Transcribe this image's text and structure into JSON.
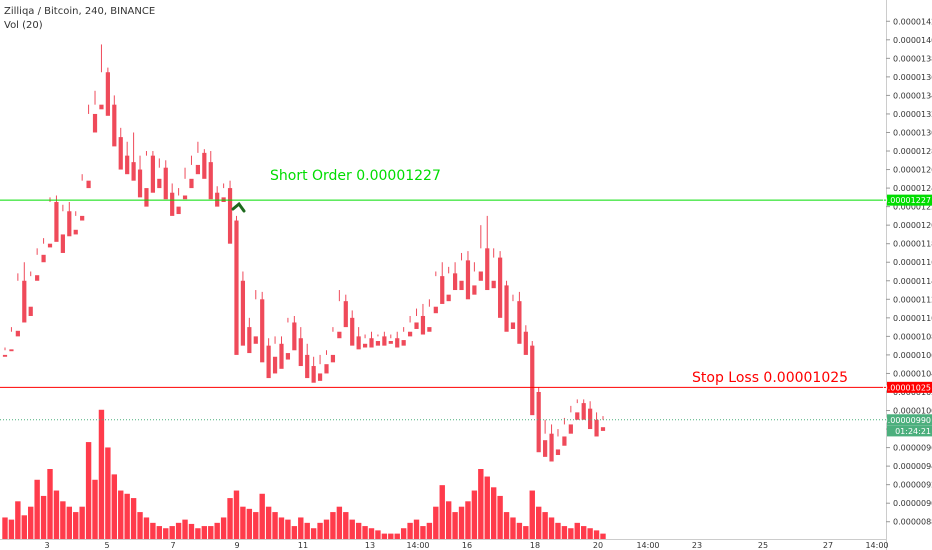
{
  "header": {
    "title": "Zilliqa / Bitcoin, 240, BINANCE",
    "volume": "Vol (20)"
  },
  "annotations": {
    "short": {
      "text": "Short Order 0.00001227",
      "color": "#00dd00"
    },
    "stop": {
      "text": "Stop Loss 0.00001025",
      "color": "#ff0000"
    }
  },
  "colors": {
    "up": "#4caf7d",
    "down": "#ef4a5a",
    "vol_up": "#3a7a24",
    "vol_down": "#ff3b4b",
    "short": "#00dd00",
    "stop": "#ff0000",
    "current": "#4caf7d"
  },
  "chart_data": {
    "type": "candlestick",
    "title": "Zilliqa / Bitcoin, 240, BINANCE",
    "ylim": [
      8.7e-06,
      1.43e-05
    ],
    "yticks": [
      "0.00001420",
      "0.00001400",
      "0.00001380",
      "0.00001360",
      "0.00001340",
      "0.00001320",
      "0.00001300",
      "0.00001280",
      "0.00001260",
      "0.00001240",
      "0.00001220",
      "0.00001200",
      "0.00001180",
      "0.00001160",
      "0.00001140",
      "0.00001120",
      "0.00001100",
      "0.00001080",
      "0.00001060",
      "0.00001040",
      "0.00001020",
      "0.00001000",
      "0.00000980",
      "0.00000960",
      "0.00000940",
      "0.00000920",
      "0.00000900",
      "0.00000880"
    ],
    "xticks": [
      "3",
      "5",
      "7",
      "9",
      "11",
      "13",
      "14:00",
      "16",
      "18",
      "20",
      "14:00",
      "23",
      "25",
      "27",
      "14:00"
    ],
    "price_tags": [
      {
        "label": "0.00001227",
        "value": 1.227e-05,
        "color": "#00dd00"
      },
      {
        "label": "0.00001025",
        "value": 1.025e-05,
        "color": "#ff0000"
      },
      {
        "label": "0.00000990",
        "value": 9.9e-06,
        "color": "#4caf7d"
      },
      {
        "label": "01:24:21",
        "value": 9.78e-06,
        "color": "#4caf7d"
      }
    ],
    "levels": [
      {
        "name": "short-order",
        "value": 1.227e-05
      },
      {
        "name": "stop-loss",
        "value": 1.025e-05
      },
      {
        "name": "current",
        "value": 9.9e-06
      }
    ],
    "candles": [
      [
        1.06,
        1.068,
        1.065,
        1.058,
        20
      ],
      [
        1.066,
        1.09,
        1.085,
        1.064,
        18
      ],
      [
        1.086,
        1.148,
        1.14,
        1.08,
        35
      ],
      [
        1.14,
        1.16,
        1.11,
        1.095,
        22
      ],
      [
        1.112,
        1.15,
        1.145,
        1.102,
        30
      ],
      [
        1.146,
        1.175,
        1.168,
        1.14,
        55
      ],
      [
        1.168,
        1.186,
        1.18,
        1.16,
        40
      ],
      [
        1.18,
        1.23,
        1.225,
        1.176,
        65
      ],
      [
        1.225,
        1.232,
        1.19,
        1.182,
        45
      ],
      [
        1.19,
        1.222,
        1.215,
        1.17,
        35
      ],
      [
        1.215,
        1.225,
        1.195,
        1.188,
        30
      ],
      [
        1.195,
        1.215,
        1.21,
        1.19,
        25
      ],
      [
        1.21,
        1.255,
        1.248,
        1.205,
        30
      ],
      [
        1.248,
        1.33,
        1.32,
        1.24,
        90
      ],
      [
        1.32,
        1.345,
        1.33,
        1.3,
        55
      ],
      [
        1.33,
        1.395,
        1.365,
        1.325,
        120
      ],
      [
        1.365,
        1.37,
        1.33,
        1.318,
        85
      ],
      [
        1.33,
        1.34,
        1.295,
        1.285,
        60
      ],
      [
        1.295,
        1.305,
        1.275,
        1.26,
        45
      ],
      [
        1.275,
        1.29,
        1.268,
        1.255,
        42
      ],
      [
        1.268,
        1.3,
        1.26,
        1.248,
        38
      ],
      [
        1.26,
        1.275,
        1.24,
        1.23,
        25
      ],
      [
        1.24,
        1.28,
        1.275,
        1.22,
        20
      ],
      [
        1.275,
        1.28,
        1.25,
        1.235,
        15
      ],
      [
        1.25,
        1.272,
        1.262,
        1.24,
        12
      ],
      [
        1.262,
        1.27,
        1.235,
        1.228,
        10
      ],
      [
        1.235,
        1.245,
        1.22,
        1.21,
        12
      ],
      [
        1.22,
        1.24,
        1.232,
        1.212,
        15
      ],
      [
        1.232,
        1.262,
        1.25,
        1.228,
        18
      ],
      [
        1.25,
        1.275,
        1.265,
        1.24,
        14
      ],
      [
        1.265,
        1.29,
        1.278,
        1.255,
        10
      ],
      [
        1.278,
        1.282,
        1.268,
        1.25,
        12
      ],
      [
        1.268,
        1.28,
        1.235,
        1.228,
        12
      ],
      [
        1.235,
        1.242,
        1.23,
        1.22,
        15
      ],
      [
        1.23,
        1.245,
        1.24,
        1.225,
        20
      ],
      [
        1.24,
        1.248,
        1.205,
        1.18,
        38
      ],
      [
        1.205,
        1.21,
        1.14,
        1.06,
        45
      ],
      [
        1.14,
        1.15,
        1.09,
        1.07,
        30
      ],
      [
        1.09,
        1.1,
        1.08,
        1.062,
        28
      ],
      [
        1.08,
        1.13,
        1.12,
        1.072,
        25
      ],
      [
        1.12,
        1.128,
        1.07,
        1.052,
        42
      ],
      [
        1.07,
        1.078,
        1.058,
        1.035,
        30
      ],
      [
        1.058,
        1.08,
        1.072,
        1.04,
        25
      ],
      [
        1.072,
        1.08,
        1.062,
        1.045,
        20
      ],
      [
        1.062,
        1.1,
        1.095,
        1.055,
        18
      ],
      [
        1.095,
        1.102,
        1.078,
        1.065,
        12
      ],
      [
        1.078,
        1.09,
        1.06,
        1.048,
        20
      ],
      [
        1.06,
        1.072,
        1.048,
        1.035,
        15
      ],
      [
        1.048,
        1.058,
        1.04,
        1.03,
        10
      ],
      [
        1.04,
        1.06,
        1.05,
        1.032,
        15
      ],
      [
        1.05,
        1.065,
        1.06,
        1.04,
        18
      ],
      [
        1.06,
        1.09,
        1.085,
        1.052,
        25
      ],
      [
        1.085,
        1.13,
        1.118,
        1.078,
        30
      ],
      [
        1.118,
        1.125,
        1.1,
        1.09,
        25
      ],
      [
        1.1,
        1.108,
        1.08,
        1.07,
        18
      ],
      [
        1.08,
        1.09,
        1.072,
        1.066,
        15
      ],
      [
        1.072,
        1.082,
        1.078,
        1.068,
        12
      ],
      [
        1.078,
        1.085,
        1.075,
        1.068,
        10
      ],
      [
        1.075,
        1.082,
        1.08,
        1.07,
        8
      ],
      [
        1.08,
        1.085,
        1.075,
        1.07,
        5
      ],
      [
        1.075,
        1.082,
        1.078,
        1.072,
        5
      ],
      [
        1.078,
        1.085,
        1.076,
        1.068,
        5
      ],
      [
        1.076,
        1.09,
        1.085,
        1.07,
        10
      ],
      [
        1.085,
        1.102,
        1.095,
        1.08,
        15
      ],
      [
        1.095,
        1.11,
        1.102,
        1.088,
        18
      ],
      [
        1.102,
        1.115,
        1.09,
        1.082,
        12
      ],
      [
        1.09,
        1.12,
        1.112,
        1.085,
        15
      ],
      [
        1.112,
        1.15,
        1.145,
        1.105,
        30
      ],
      [
        1.145,
        1.16,
        1.125,
        1.115,
        50
      ],
      [
        1.125,
        1.155,
        1.148,
        1.118,
        35
      ],
      [
        1.148,
        1.16,
        1.14,
        1.13,
        25
      ],
      [
        1.14,
        1.17,
        1.162,
        1.13,
        30
      ],
      [
        1.162,
        1.172,
        1.135,
        1.12,
        35
      ],
      [
        1.135,
        1.16,
        1.15,
        1.125,
        45
      ],
      [
        1.15,
        1.2,
        1.175,
        1.14,
        65
      ],
      [
        1.175,
        1.21,
        1.14,
        1.13,
        58
      ],
      [
        1.14,
        1.175,
        1.165,
        1.132,
        48
      ],
      [
        1.165,
        1.172,
        1.135,
        1.1,
        40
      ],
      [
        1.135,
        1.14,
        1.095,
        1.085,
        25
      ],
      [
        1.095,
        1.125,
        1.118,
        1.088,
        20
      ],
      [
        1.118,
        1.128,
        1.085,
        1.072,
        15
      ],
      [
        1.085,
        1.092,
        1.07,
        1.06,
        12
      ],
      [
        1.07,
        1.075,
        1.02,
        0.995,
        45
      ],
      [
        1.02,
        1.025,
        0.968,
        0.955,
        30
      ],
      [
        0.968,
        0.99,
        0.975,
        0.95,
        25
      ],
      [
        0.975,
        0.985,
        0.958,
        0.945,
        20
      ],
      [
        0.958,
        0.98,
        0.972,
        0.952,
        15
      ],
      [
        0.972,
        0.992,
        0.985,
        0.962,
        12
      ],
      [
        0.985,
        1.005,
        0.998,
        0.975,
        10
      ],
      [
        0.998,
        1.012,
        1.008,
        0.99,
        15
      ],
      [
        1.008,
        1.012,
        1.002,
        0.99,
        12
      ],
      [
        1.002,
        1.01,
        0.99,
        0.98,
        10
      ],
      [
        0.99,
        0.998,
        0.982,
        0.972,
        8
      ],
      [
        0.982,
        0.994,
        0.99,
        0.978,
        5
      ]
    ]
  }
}
